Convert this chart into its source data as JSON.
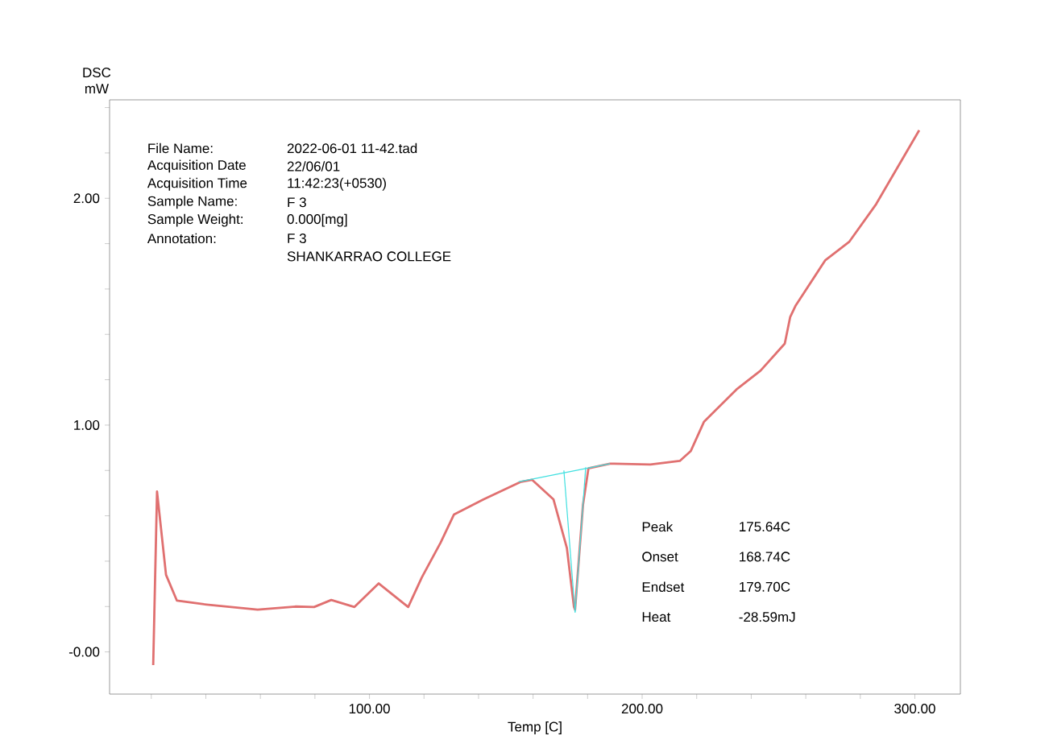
{
  "chart_data": {
    "type": "line",
    "xlabel": "Temp  [C]",
    "ylabel": "DSC mW",
    "xlim": [
      4.7,
      316.7
    ],
    "ylim": [
      -0.186,
      2.434
    ],
    "xticks": [
      {
        "value": 20,
        "label": null
      },
      {
        "value": 40,
        "label": null
      },
      {
        "value": 60,
        "label": null
      },
      {
        "value": 80,
        "label": null
      },
      {
        "value": 100,
        "label": "100.00"
      },
      {
        "value": 120,
        "label": null
      },
      {
        "value": 140,
        "label": null
      },
      {
        "value": 160,
        "label": null
      },
      {
        "value": 180,
        "label": null
      },
      {
        "value": 200,
        "label": "200.00"
      },
      {
        "value": 220,
        "label": null
      },
      {
        "value": 240,
        "label": null
      },
      {
        "value": 260,
        "label": null
      },
      {
        "value": 280,
        "label": null
      },
      {
        "value": 300,
        "label": "300.00"
      }
    ],
    "yticks": [
      {
        "value": 0,
        "label": "-0.00"
      },
      {
        "value": 0.2,
        "label": null
      },
      {
        "value": 0.4,
        "label": null
      },
      {
        "value": 0.6,
        "label": null
      },
      {
        "value": 0.8,
        "label": null
      },
      {
        "value": 1,
        "label": "1.00"
      },
      {
        "value": 1.2,
        "label": null
      },
      {
        "value": 1.4,
        "label": null
      },
      {
        "value": 1.6,
        "label": null
      },
      {
        "value": 1.8,
        "label": null
      },
      {
        "value": 2,
        "label": "2.00"
      },
      {
        "value": 2.2,
        "label": null
      },
      {
        "value": 2.4,
        "label": null
      }
    ],
    "series": [
      {
        "color": "#e07070",
        "x": [
          20.7,
          22.1,
          25.4,
          29.4,
          39.3,
          59,
          72.8,
          79.7,
          86,
          94.5,
          103.4,
          114.2,
          119.2,
          126.1,
          131,
          141.8,
          155.6,
          159.6,
          167.5,
          172.4,
          175,
          175.4,
          178.3,
          180.3,
          188.2,
          203,
          213.8,
          217.8,
          222.7,
          234.6,
          243.4,
          252.3,
          254.3,
          256.2,
          267.1,
          276,
          285.8,
          301.6
        ],
        "values": [
          -0.058,
          0.707,
          0.34,
          0.226,
          0.21,
          0.186,
          0.2,
          0.198,
          0.229,
          0.198,
          0.302,
          0.198,
          0.328,
          0.482,
          0.606,
          0.672,
          0.75,
          0.759,
          0.672,
          0.458,
          0.198,
          0.186,
          0.648,
          0.809,
          0.83,
          0.826,
          0.842,
          0.885,
          1.015,
          1.157,
          1.24,
          1.359,
          1.477,
          1.525,
          1.726,
          1.809,
          1.974,
          2.3
        ]
      },
      {
        "color": "#40e0e0",
        "x": [
          154.7,
          188.2
        ],
        "values": [
          0.75,
          0.83
        ]
      },
      {
        "color": "#40e0e0",
        "x": [
          171.3,
          175.4
        ],
        "values": [
          0.8,
          0.174
        ]
      },
      {
        "color": "#40e0e0",
        "x": [
          175.4,
          179.3
        ],
        "values": [
          0.174,
          0.814
        ]
      }
    ],
    "annotations": [
      "File Name:",
      "2022-06-01 11-42.tad",
      "Acquisition Date",
      "22/06/01",
      "Acquisition Time",
      "11:42:23(+0530)",
      "Sample Name:",
      "F 3",
      "Sample Weight:",
      "0.000[mg]",
      "Annotation:",
      "F 3",
      "SHANKARRAO COLLEGE",
      "Peak",
      "175.64C",
      "Onset",
      "168.74C",
      "Endset",
      "179.70C",
      "Heat",
      "-28.59mJ"
    ]
  }
}
